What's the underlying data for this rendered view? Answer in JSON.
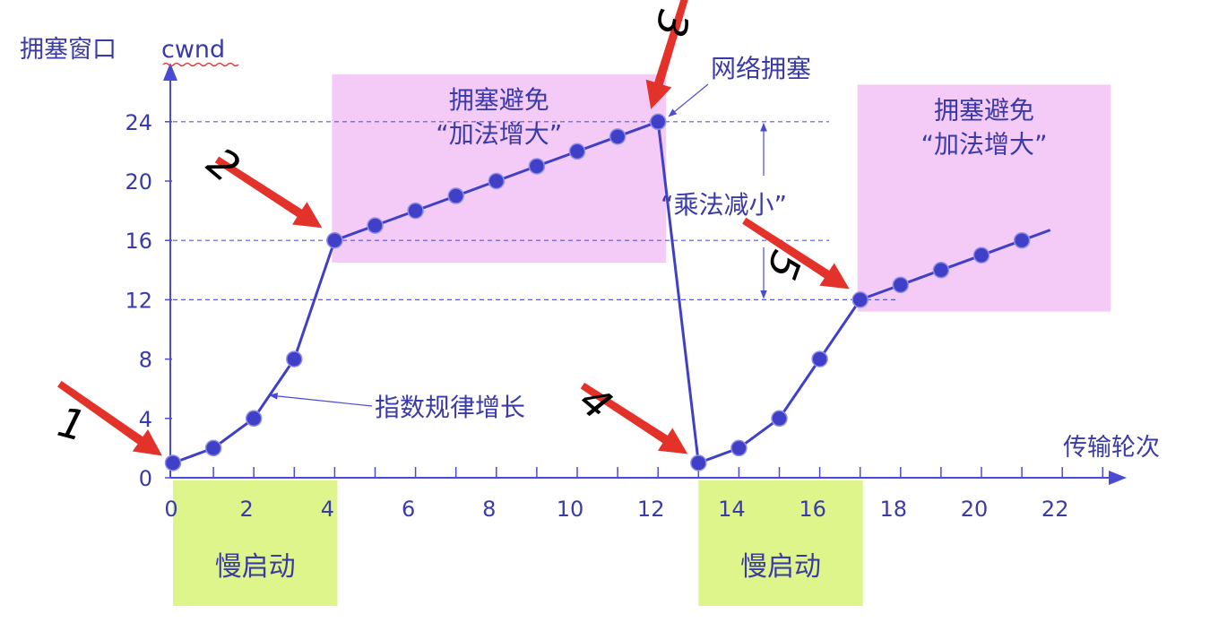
{
  "chart_data": {
    "type": "line",
    "ylabel": "拥塞窗口",
    "ylabel_suffix": "cwnd",
    "xlabel": "传输轮次",
    "x_ticks": [
      0,
      2,
      4,
      6,
      8,
      10,
      12,
      14,
      16,
      18,
      20,
      22
    ],
    "y_ticks": [
      0,
      4,
      8,
      12,
      16,
      20,
      24
    ],
    "xlim": [
      0,
      24
    ],
    "ylim": [
      0,
      27
    ],
    "grid": false,
    "reference_lines": [
      24,
      16,
      12
    ],
    "series": [
      {
        "name": "",
        "points": [
          [
            0,
            1
          ],
          [
            1,
            2
          ],
          [
            2,
            4
          ],
          [
            3,
            8
          ],
          [
            4,
            16
          ],
          [
            5,
            17
          ],
          [
            6,
            18
          ],
          [
            7,
            19
          ],
          [
            8,
            20
          ],
          [
            9,
            21
          ],
          [
            10,
            22
          ],
          [
            11,
            23
          ],
          [
            12,
            24
          ],
          [
            13,
            1
          ],
          [
            14,
            2
          ],
          [
            15,
            4
          ],
          [
            16,
            8
          ],
          [
            17,
            12
          ],
          [
            18,
            13
          ],
          [
            19,
            14
          ],
          [
            20,
            15
          ],
          [
            21,
            16
          ]
        ],
        "line_end": [
          21.7,
          16.7
        ]
      }
    ],
    "regions": [
      {
        "id": "ca1",
        "x_range": [
          4,
          12.2
        ],
        "y_range": [
          14.5,
          27.2
        ],
        "color": "#f4cbf6",
        "lines": [
          "拥塞避免",
          "“加法增大”"
        ]
      },
      {
        "id": "ca2",
        "x_range": [
          17,
          23.2
        ],
        "y_range": [
          11.2,
          26.5
        ],
        "color": "#f4cbf6",
        "lines": [
          "拥塞避免",
          "“加法增大”"
        ]
      },
      {
        "id": "ss1",
        "x_range": [
          0,
          4
        ],
        "color": "#ddf58a",
        "label": "慢启动"
      },
      {
        "id": "ss2",
        "x_range": [
          13,
          17
        ],
        "color": "#ddf58a",
        "label": "慢启动"
      }
    ],
    "annotations": {
      "congestion": "网络拥塞",
      "multiplicative_decrease": "“乘法减小”",
      "exponential_growth": "指数规律增长"
    },
    "markers": [
      {
        "label": "1",
        "at": [
          0,
          1
        ]
      },
      {
        "label": "2",
        "at": [
          4,
          16
        ]
      },
      {
        "label": "3",
        "at": [
          12,
          24
        ]
      },
      {
        "label": "4",
        "at": [
          13,
          1
        ]
      },
      {
        "label": "5",
        "at": [
          17,
          12
        ]
      }
    ],
    "colors": {
      "line": "#3f3fc8",
      "point": "#3f3fc8",
      "axis": "#4a4ad6",
      "text": "#3a3aa8",
      "arrow": "#e3322a",
      "marker_text": "#000000",
      "ref_line": "#5a5ad0"
    }
  }
}
